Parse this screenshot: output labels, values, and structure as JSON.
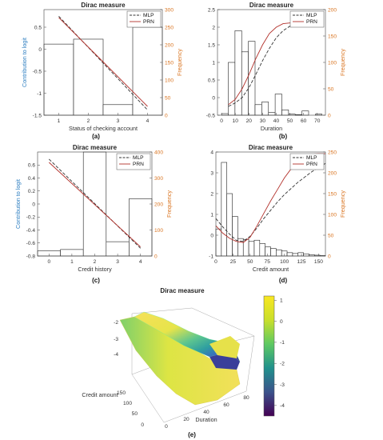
{
  "colors": {
    "left_axis": "#2f7fc1",
    "right_axis": "#d9731f",
    "mlp": "#333333",
    "prn": "#b2302a",
    "bar_edge": "#222222"
  },
  "chart_data": [
    {
      "id": "a",
      "type": "bar",
      "title": "Dirac measure",
      "caption": "(a)",
      "xlabel": "Status of checking account",
      "ylabel": "Contribution to logit",
      "y2label": "Frequency",
      "xlim": [
        0.5,
        4.5
      ],
      "ylim": [
        -1.5,
        0.9
      ],
      "y2lim": [
        0,
        300
      ],
      "xticks": [
        "1",
        "2",
        "3",
        "4"
      ],
      "yticks": [
        "-1.5",
        "-1",
        "-0.5",
        "0",
        "0.5"
      ],
      "y2ticks": [
        "0",
        "50",
        "100",
        "150",
        "200",
        "250",
        "300"
      ],
      "bins": [
        [
          0.5,
          1.5
        ],
        [
          1.5,
          2.5
        ],
        [
          2.5,
          3.5
        ],
        [
          3.5,
          4.5
        ]
      ],
      "frequency": [
        202,
        216,
        30,
        250
      ],
      "legend": [
        "MLP",
        "PRN"
      ],
      "legend_position": "top-right",
      "series": [
        {
          "name": "MLP",
          "style": "dashed",
          "x": [
            1,
            4
          ],
          "y": [
            0.75,
            -1.38
          ]
        },
        {
          "name": "PRN",
          "style": "solid",
          "x": [
            1,
            4
          ],
          "y": [
            0.72,
            -1.3
          ]
        }
      ]
    },
    {
      "id": "b",
      "type": "bar",
      "title": "Dirac measure",
      "caption": "(b)",
      "xlabel": "Duration",
      "ylabel": "",
      "y2label": "Frequency",
      "xlim": [
        -3,
        76
      ],
      "ylim": [
        -0.5,
        2.5
      ],
      "y2lim": [
        0,
        200
      ],
      "xticks": [
        "0",
        "10",
        "20",
        "30",
        "40",
        "50",
        "60",
        "70"
      ],
      "yticks": [
        "-0.5",
        "0",
        "0.5",
        "1",
        "1.5",
        "2",
        "2.5"
      ],
      "y2ticks": [
        "0",
        "50",
        "100",
        "150",
        "200"
      ],
      "bins": [
        [
          0,
          4.9
        ],
        [
          4.9,
          9.8
        ],
        [
          9.8,
          14.7
        ],
        [
          14.7,
          19.6
        ],
        [
          19.6,
          24.5
        ],
        [
          24.5,
          29.4
        ],
        [
          29.4,
          34.3
        ],
        [
          34.3,
          39.2
        ],
        [
          39.2,
          44.1
        ],
        [
          44.1,
          49
        ],
        [
          49,
          53.9
        ],
        [
          53.9,
          58.8
        ],
        [
          58.8,
          63.7
        ],
        [
          63.7,
          68.6
        ],
        [
          68.6,
          73.5
        ]
      ],
      "frequency": [
        3,
        100,
        160,
        120,
        140,
        20,
        25,
        5,
        40,
        10,
        2,
        1,
        8,
        0,
        2
      ],
      "legend": [
        "MLP",
        "PRN"
      ],
      "legend_position": "top-right",
      "series": [
        {
          "name": "MLP",
          "style": "dashed",
          "x": [
            5,
            10,
            15,
            20,
            25,
            30,
            35,
            40,
            45,
            50,
            55,
            60
          ],
          "y": [
            -0.25,
            -0.15,
            0.0,
            0.28,
            0.65,
            1.05,
            1.4,
            1.7,
            1.9,
            2.03,
            2.1,
            2.12
          ]
        },
        {
          "name": "PRN",
          "style": "solid",
          "x": [
            5,
            10,
            15,
            20,
            25,
            30,
            35,
            40,
            45,
            50,
            55,
            60
          ],
          "y": [
            -0.2,
            -0.05,
            0.25,
            0.65,
            1.1,
            1.5,
            1.82,
            2.0,
            2.1,
            2.12,
            2.12,
            2.11
          ]
        }
      ]
    },
    {
      "id": "c",
      "type": "bar",
      "title": "Dirac measure",
      "caption": "(c)",
      "xlabel": "Credit history",
      "ylabel": "Contribution to logit",
      "y2label": "Frequency",
      "xlim": [
        -0.5,
        4.5
      ],
      "ylim": [
        -0.8,
        0.8
      ],
      "y2lim": [
        0,
        400
      ],
      "xticks": [
        "0",
        "1",
        "2",
        "3",
        "4"
      ],
      "yticks": [
        "-0.8",
        "-0.6",
        "-0.4",
        "-0.2",
        "0",
        "0.2",
        "0.4",
        "0.6"
      ],
      "y2ticks": [
        "0",
        "100",
        "200",
        "300",
        "400"
      ],
      "bins": [
        [
          -0.5,
          0.5
        ],
        [
          0.5,
          1.5
        ],
        [
          1.5,
          2.5
        ],
        [
          2.5,
          3.5
        ],
        [
          3.5,
          4.5
        ]
      ],
      "frequency": [
        20,
        25,
        400,
        55,
        220
      ],
      "legend": [
        "MLP",
        "PRN"
      ],
      "legend_position": "top-right",
      "series": [
        {
          "name": "MLP",
          "style": "dashed",
          "x": [
            0,
            4
          ],
          "y": [
            0.69,
            -0.68
          ]
        },
        {
          "name": "PRN",
          "style": "solid",
          "x": [
            0,
            4
          ],
          "y": [
            0.64,
            -0.66
          ]
        }
      ]
    },
    {
      "id": "d",
      "type": "bar",
      "title": "Dirac measure",
      "caption": "(d)",
      "xlabel": "Credit amount",
      "ylabel": "",
      "y2label": "Frequency",
      "xlim": [
        0,
        160
      ],
      "ylim": [
        -1,
        4
      ],
      "y2lim": [
        0,
        250
      ],
      "xticks": [
        "0",
        "25",
        "50",
        "75",
        "100",
        "125",
        "150"
      ],
      "yticks": [
        "-1",
        "0",
        "1",
        "2",
        "3",
        "4"
      ],
      "y2ticks": [
        "0",
        "50",
        "100",
        "150",
        "200",
        "250"
      ],
      "bins": [
        [
          0,
          8
        ],
        [
          8,
          16
        ],
        [
          16,
          24
        ],
        [
          24,
          32
        ],
        [
          32,
          40
        ],
        [
          40,
          48
        ],
        [
          48,
          56
        ],
        [
          56,
          64
        ],
        [
          64,
          72
        ],
        [
          72,
          80
        ],
        [
          80,
          88
        ],
        [
          88,
          96
        ],
        [
          96,
          104
        ],
        [
          104,
          112
        ],
        [
          112,
          120
        ],
        [
          120,
          128
        ],
        [
          128,
          136
        ],
        [
          136,
          144
        ],
        [
          144,
          152
        ],
        [
          152,
          160
        ]
      ],
      "frequency": [
        65,
        225,
        150,
        95,
        42,
        40,
        35,
        38,
        30,
        22,
        18,
        15,
        12,
        8,
        6,
        8,
        5,
        3,
        2,
        1
      ],
      "legend": [
        "MLP",
        "PRN"
      ],
      "legend_position": "top-right",
      "series": [
        {
          "name": "MLP",
          "style": "dashed",
          "x": [
            0,
            10,
            20,
            30,
            40,
            50,
            60,
            70,
            80,
            90,
            100,
            110,
            120,
            130,
            140,
            150,
            160
          ],
          "y": [
            0.8,
            0.4,
            0.05,
            -0.25,
            -0.3,
            -0.05,
            0.35,
            0.8,
            1.2,
            1.6,
            1.95,
            2.25,
            2.55,
            2.8,
            3.05,
            3.25,
            3.45
          ]
        },
        {
          "name": "PRN",
          "style": "solid",
          "x": [
            0,
            10,
            20,
            30,
            40,
            50,
            60,
            70,
            80,
            90,
            100,
            110,
            120,
            130,
            140,
            150,
            160
          ],
          "y": [
            0.45,
            0.1,
            -0.15,
            -0.3,
            -0.35,
            -0.1,
            0.45,
            1.05,
            1.65,
            2.2,
            2.75,
            3.2,
            3.55,
            3.8,
            3.9,
            3.92,
            3.92
          ]
        }
      ]
    },
    {
      "id": "e",
      "type": "surface",
      "title": "Dirac measure",
      "caption": "(e)",
      "xlabel": "Duration",
      "ylabel": "Credit amount",
      "xticks": [
        "0",
        "20",
        "40",
        "60",
        "80"
      ],
      "yticks": [
        "0",
        "50",
        "100",
        "150"
      ],
      "zticks": [
        "-4",
        "-3",
        "-2"
      ],
      "colorbar_ticks": [
        "1",
        "0",
        "-1",
        "-2",
        "-3",
        "-4"
      ],
      "colorbar_range": [
        -4.5,
        1.2
      ]
    }
  ]
}
